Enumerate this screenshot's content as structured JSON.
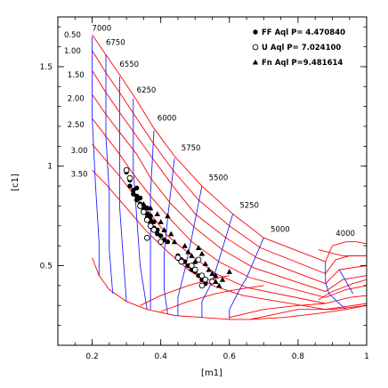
{
  "chart_data": {
    "type": "scatter",
    "title": "",
    "xlabel": "[m1]",
    "ylabel": "[c1]",
    "xlim": [
      0.1,
      1.0
    ],
    "ylim": [
      0.1,
      1.75
    ],
    "xticks": [
      0.2,
      0.4,
      0.6,
      0.8,
      1.0
    ],
    "xtick_labels": [
      "0.2",
      "0.4",
      "0.6",
      "0.8",
      "1"
    ],
    "yticks": [
      0.5,
      1.0,
      1.5
    ],
    "ytick_labels": [
      "0.5",
      "1",
      "1.5"
    ],
    "grid": false,
    "legend_position": "top-right",
    "colors": {
      "red_grid": "#ff0000",
      "blue_grid": "#2020ff",
      "points": "#000000"
    },
    "series": [
      {
        "name": "FF Aql P= 4.470840",
        "marker": "filled-circle",
        "points": [
          [
            0.3,
            0.97
          ],
          [
            0.31,
            0.93
          ],
          [
            0.31,
            0.9
          ],
          [
            0.32,
            0.88
          ],
          [
            0.32,
            0.86
          ],
          [
            0.33,
            0.89
          ],
          [
            0.33,
            0.85
          ],
          [
            0.33,
            0.83
          ],
          [
            0.34,
            0.84
          ],
          [
            0.34,
            0.81
          ],
          [
            0.35,
            0.8
          ],
          [
            0.35,
            0.78
          ],
          [
            0.36,
            0.79
          ],
          [
            0.36,
            0.76
          ],
          [
            0.36,
            0.74
          ],
          [
            0.37,
            0.75
          ],
          [
            0.37,
            0.73
          ],
          [
            0.37,
            0.71
          ],
          [
            0.38,
            0.72
          ],
          [
            0.38,
            0.69
          ],
          [
            0.39,
            0.68
          ],
          [
            0.39,
            0.66
          ],
          [
            0.4,
            0.65
          ],
          [
            0.41,
            0.63
          ],
          [
            0.42,
            0.62
          ],
          [
            0.45,
            0.55
          ],
          [
            0.46,
            0.53
          ],
          [
            0.47,
            0.52
          ],
          [
            0.48,
            0.5
          ],
          [
            0.49,
            0.48
          ],
          [
            0.5,
            0.47
          ],
          [
            0.51,
            0.45
          ],
          [
            0.52,
            0.43
          ],
          [
            0.53,
            0.41
          ]
        ]
      },
      {
        "name": "U Aql P= 7.024100",
        "marker": "open-circle",
        "points": [
          [
            0.3,
            0.98
          ],
          [
            0.31,
            0.94
          ],
          [
            0.34,
            0.8
          ],
          [
            0.35,
            0.77
          ],
          [
            0.36,
            0.73
          ],
          [
            0.37,
            0.7
          ],
          [
            0.38,
            0.68
          ],
          [
            0.36,
            0.64
          ],
          [
            0.4,
            0.62
          ],
          [
            0.45,
            0.54
          ],
          [
            0.46,
            0.52
          ],
          [
            0.49,
            0.5
          ],
          [
            0.51,
            0.53
          ],
          [
            0.5,
            0.48
          ],
          [
            0.52,
            0.45
          ],
          [
            0.53,
            0.43
          ],
          [
            0.52,
            0.4
          ],
          [
            0.55,
            0.42
          ]
        ]
      },
      {
        "name": "Fn Aql P=9.481614",
        "marker": "filled-triangle",
        "points": [
          [
            0.35,
            0.81
          ],
          [
            0.37,
            0.79
          ],
          [
            0.39,
            0.76
          ],
          [
            0.4,
            0.72
          ],
          [
            0.41,
            0.68
          ],
          [
            0.42,
            0.75
          ],
          [
            0.43,
            0.66
          ],
          [
            0.44,
            0.62
          ],
          [
            0.47,
            0.6
          ],
          [
            0.48,
            0.57
          ],
          [
            0.49,
            0.55
          ],
          [
            0.5,
            0.52
          ],
          [
            0.51,
            0.59
          ],
          [
            0.52,
            0.56
          ],
          [
            0.53,
            0.51
          ],
          [
            0.54,
            0.48
          ],
          [
            0.55,
            0.46
          ],
          [
            0.56,
            0.45
          ],
          [
            0.56,
            0.42
          ],
          [
            0.57,
            0.4
          ],
          [
            0.58,
            0.43
          ],
          [
            0.6,
            0.47
          ]
        ]
      }
    ],
    "model_grid": {
      "teff_values": [
        7000,
        6750,
        6550,
        6250,
        6000,
        5750,
        5500,
        5250,
        5000,
        4000
      ],
      "teff_labels": [
        "7000",
        "6750",
        "6550",
        "6250",
        "6000",
        "5750",
        "5500",
        "5250",
        "5000",
        "4000"
      ],
      "logg_labels": [
        "0.50",
        "1.00",
        "1.50",
        "2.00",
        "2.50",
        "3.00",
        "3.50"
      ],
      "logg_rows": [
        [
          [
            0.2,
            1.66
          ],
          [
            0.24,
            1.56
          ],
          [
            0.28,
            1.46
          ],
          [
            0.33,
            1.33
          ],
          [
            0.38,
            1.19
          ],
          [
            0.44,
            1.05
          ],
          [
            0.52,
            0.9
          ],
          [
            0.61,
            0.76
          ],
          [
            0.7,
            0.64
          ],
          [
            0.88,
            0.52
          ],
          [
            0.9,
            0.6
          ],
          [
            0.94,
            0.62
          ],
          [
            0.97,
            0.62
          ],
          [
            1.0,
            0.61
          ]
        ],
        [
          [
            0.2,
            1.58
          ],
          [
            0.24,
            1.47
          ],
          [
            0.28,
            1.37
          ],
          [
            0.33,
            1.24
          ],
          [
            0.38,
            1.11
          ],
          [
            0.44,
            0.97
          ],
          [
            0.51,
            0.83
          ],
          [
            0.6,
            0.7
          ],
          [
            0.69,
            0.59
          ],
          [
            0.88,
            0.46
          ],
          [
            0.91,
            0.53
          ],
          [
            0.95,
            0.55
          ],
          [
            1.0,
            0.55
          ]
        ],
        [
          [
            0.2,
            1.48
          ],
          [
            0.24,
            1.37
          ],
          [
            0.28,
            1.27
          ],
          [
            0.33,
            1.15
          ],
          [
            0.38,
            1.03
          ],
          [
            0.44,
            0.89
          ],
          [
            0.5,
            0.76
          ],
          [
            0.59,
            0.64
          ],
          [
            0.68,
            0.54
          ],
          [
            0.88,
            0.41
          ],
          [
            0.92,
            0.48
          ],
          [
            1.0,
            0.5
          ]
        ],
        [
          [
            0.2,
            1.36
          ],
          [
            0.24,
            1.26
          ],
          [
            0.28,
            1.17
          ],
          [
            0.33,
            1.06
          ],
          [
            0.37,
            0.94
          ],
          [
            0.43,
            0.81
          ],
          [
            0.5,
            0.69
          ],
          [
            0.58,
            0.58
          ],
          [
            0.67,
            0.49
          ],
          [
            0.88,
            0.37
          ],
          [
            0.93,
            0.43
          ],
          [
            1.0,
            0.45
          ]
        ],
        [
          [
            0.2,
            1.24
          ],
          [
            0.24,
            1.15
          ],
          [
            0.28,
            1.06
          ],
          [
            0.32,
            0.96
          ],
          [
            0.37,
            0.85
          ],
          [
            0.43,
            0.73
          ],
          [
            0.49,
            0.62
          ],
          [
            0.57,
            0.52
          ],
          [
            0.66,
            0.44
          ],
          [
            0.88,
            0.34
          ],
          [
            0.94,
            0.38
          ],
          [
            1.0,
            0.4
          ]
        ],
        [
          [
            0.2,
            1.11
          ],
          [
            0.24,
            1.03
          ],
          [
            0.28,
            0.95
          ],
          [
            0.32,
            0.86
          ],
          [
            0.37,
            0.76
          ],
          [
            0.42,
            0.65
          ],
          [
            0.49,
            0.55
          ],
          [
            0.56,
            0.46
          ],
          [
            0.65,
            0.39
          ],
          [
            0.88,
            0.31
          ],
          [
            0.95,
            0.34
          ],
          [
            1.0,
            0.35
          ]
        ],
        [
          [
            0.2,
            0.98
          ],
          [
            0.24,
            0.91
          ],
          [
            0.28,
            0.83
          ],
          [
            0.32,
            0.75
          ],
          [
            0.36,
            0.67
          ],
          [
            0.42,
            0.57
          ],
          [
            0.48,
            0.48
          ],
          [
            0.55,
            0.4
          ],
          [
            0.64,
            0.35
          ],
          [
            0.88,
            0.28
          ],
          [
            0.96,
            0.3
          ],
          [
            1.0,
            0.31
          ]
        ]
      ],
      "lower_envelope": [
        [
          0.2,
          0.54
        ],
        [
          0.22,
          0.45
        ],
        [
          0.25,
          0.38
        ],
        [
          0.3,
          0.32
        ],
        [
          0.36,
          0.28
        ],
        [
          0.44,
          0.25
        ],
        [
          0.52,
          0.24
        ],
        [
          0.6,
          0.23
        ],
        [
          0.66,
          0.23
        ],
        [
          0.76,
          0.24
        ],
        [
          0.86,
          0.26
        ],
        [
          0.94,
          0.28
        ],
        [
          1.0,
          0.3
        ]
      ],
      "red_extra": [
        [
          [
            0.34,
            0.3
          ],
          [
            0.4,
            0.35
          ],
          [
            0.48,
            0.4
          ],
          [
            0.54,
            0.43
          ],
          [
            0.6,
            0.45
          ]
        ],
        [
          [
            0.4,
            0.27
          ],
          [
            0.48,
            0.32
          ],
          [
            0.56,
            0.36
          ],
          [
            0.62,
            0.38
          ],
          [
            0.7,
            0.4
          ]
        ],
        [
          [
            0.6,
            0.24
          ],
          [
            0.7,
            0.28
          ],
          [
            0.8,
            0.3
          ],
          [
            0.88,
            0.31
          ]
        ],
        [
          [
            0.66,
            0.23
          ],
          [
            0.8,
            0.28
          ],
          [
            0.9,
            0.28
          ],
          [
            1.0,
            0.3
          ]
        ],
        [
          [
            0.86,
            0.33
          ],
          [
            0.9,
            0.37
          ],
          [
            0.96,
            0.41
          ],
          [
            1.0,
            0.43
          ]
        ],
        [
          [
            0.86,
            0.58
          ],
          [
            0.93,
            0.55
          ],
          [
            1.0,
            0.55
          ]
        ]
      ],
      "blue_lines": [
        [
          [
            0.2,
            1.65
          ],
          [
            0.2,
            1.24
          ],
          [
            0.21,
            0.9
          ],
          [
            0.22,
            0.62
          ],
          [
            0.22,
            0.45
          ]
        ],
        [
          [
            0.24,
            1.56
          ],
          [
            0.24,
            1.15
          ],
          [
            0.25,
            0.86
          ],
          [
            0.25,
            0.58
          ],
          [
            0.26,
            0.36
          ]
        ],
        [
          [
            0.28,
            1.45
          ],
          [
            0.28,
            1.06
          ],
          [
            0.28,
            0.8
          ],
          [
            0.29,
            0.55
          ],
          [
            0.3,
            0.32
          ]
        ],
        [
          [
            0.32,
            1.34
          ],
          [
            0.32,
            0.98
          ],
          [
            0.33,
            0.74
          ],
          [
            0.34,
            0.5
          ],
          [
            0.36,
            0.28
          ]
        ],
        [
          [
            0.38,
            1.18
          ],
          [
            0.37,
            0.86
          ],
          [
            0.37,
            0.66
          ],
          [
            0.37,
            0.44
          ],
          [
            0.37,
            0.28
          ]
        ],
        [
          [
            0.44,
            1.04
          ],
          [
            0.42,
            0.74
          ],
          [
            0.41,
            0.56
          ],
          [
            0.41,
            0.38
          ],
          [
            0.42,
            0.26
          ]
        ],
        [
          [
            0.52,
            0.9
          ],
          [
            0.49,
            0.64
          ],
          [
            0.47,
            0.48
          ],
          [
            0.45,
            0.34
          ],
          [
            0.45,
            0.25
          ]
        ],
        [
          [
            0.61,
            0.76
          ],
          [
            0.57,
            0.53
          ],
          [
            0.55,
            0.42
          ],
          [
            0.52,
            0.32
          ],
          [
            0.52,
            0.24
          ]
        ],
        [
          [
            0.7,
            0.64
          ],
          [
            0.65,
            0.44
          ],
          [
            0.63,
            0.38
          ],
          [
            0.6,
            0.28
          ],
          [
            0.6,
            0.23
          ]
        ],
        [
          [
            0.88,
            0.52
          ],
          [
            0.88,
            0.42
          ],
          [
            0.89,
            0.36
          ],
          [
            0.92,
            0.31
          ],
          [
            0.94,
            0.28
          ]
        ],
        [
          [
            0.92,
            0.48
          ],
          [
            0.94,
            0.42
          ],
          [
            0.96,
            0.36
          ]
        ]
      ]
    }
  }
}
